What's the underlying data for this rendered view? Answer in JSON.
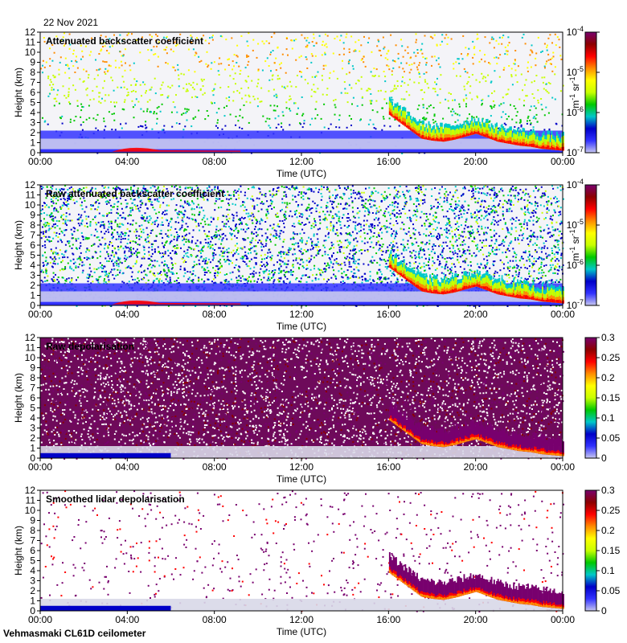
{
  "date": "22 Nov 2021",
  "footer": "Vehmasmaki CL61D ceilometer",
  "colors": {
    "rainbow": [
      "#f0f0f0",
      "#c8c8f0",
      "#3232ff",
      "#0000c8",
      "#00c8c8",
      "#00c800",
      "#c8ff00",
      "#ffff00",
      "#ff8c00",
      "#ff0000",
      "#8c0000",
      "#78006e"
    ],
    "background": "#e6e6e6",
    "nodata": "#ffffff"
  },
  "chart_data": [
    {
      "type": "heatmap",
      "title": "Attenuated backscatter coefficient",
      "xlabel": "Time (UTC)",
      "ylabel": "Height (km)",
      "xticks": [
        "00:00",
        "04:00",
        "08:00",
        "12:00",
        "16:00",
        "20:00",
        "00:00"
      ],
      "xlim": [
        0,
        24
      ],
      "yticks": [
        "0",
        "1",
        "2",
        "3",
        "4",
        "5",
        "6",
        "7",
        "8",
        "9",
        "10",
        "11",
        "12"
      ],
      "ylim": [
        0,
        12
      ],
      "colorbar": {
        "scale": "log",
        "range": [
          1e-07,
          0.0001
        ],
        "ticks": [
          {
            "base": "10",
            "exp": "-7"
          },
          {
            "base": "10",
            "exp": "-6"
          },
          {
            "base": "10",
            "exp": "-5"
          },
          {
            "base": "10",
            "exp": "-4"
          }
        ],
        "unit_parts": {
          "m": "m",
          "m_exp": "-1",
          "sr": "sr",
          "sr_exp": "-1"
        }
      },
      "features": {
        "boundary_layer_top_km": 2.2,
        "cloud_base_km": [
          [
            16.0,
            3.8
          ],
          [
            16.5,
            3.0
          ],
          [
            17.0,
            2.2
          ],
          [
            17.5,
            1.4
          ],
          [
            18.0,
            1.2
          ],
          [
            18.5,
            1.1
          ],
          [
            19.0,
            1.3
          ],
          [
            19.5,
            1.6
          ],
          [
            20.0,
            1.9
          ],
          [
            20.5,
            1.5
          ],
          [
            21.0,
            1.1
          ],
          [
            21.5,
            0.9
          ],
          [
            22.0,
            0.7
          ],
          [
            22.5,
            0.6
          ],
          [
            23.0,
            0.4
          ],
          [
            23.5,
            0.3
          ],
          [
            24.0,
            0.2
          ]
        ]
      }
    },
    {
      "type": "heatmap",
      "title": "Raw attenuated backscatter coefficient",
      "xlabel": "Time (UTC)",
      "ylabel": "Height (km)",
      "xticks": [
        "00:00",
        "04:00",
        "08:00",
        "12:00",
        "16:00",
        "20:00",
        "00:00"
      ],
      "xlim": [
        0,
        24
      ],
      "yticks": [
        "0",
        "1",
        "2",
        "3",
        "4",
        "5",
        "6",
        "7",
        "8",
        "9",
        "10",
        "11",
        "12"
      ],
      "ylim": [
        0,
        12
      ],
      "colorbar": {
        "scale": "log",
        "range": [
          1e-07,
          0.0001
        ],
        "ticks": [
          {
            "base": "10",
            "exp": "-7"
          },
          {
            "base": "10",
            "exp": "-6"
          },
          {
            "base": "10",
            "exp": "-5"
          },
          {
            "base": "10",
            "exp": "-4"
          }
        ],
        "unit_parts": {
          "m": "m",
          "m_exp": "-1",
          "sr": "sr",
          "sr_exp": "-1"
        }
      }
    },
    {
      "type": "heatmap",
      "title": "Raw depolarisation",
      "xlabel": "Time (UTC)",
      "ylabel": "Height (km)",
      "xticks": [
        "00:00",
        "04:00",
        "08:00",
        "12:00",
        "16:00",
        "20:00",
        "00:00"
      ],
      "xlim": [
        0,
        24
      ],
      "yticks": [
        "0",
        "1",
        "2",
        "3",
        "4",
        "5",
        "6",
        "7",
        "8",
        "9",
        "10",
        "11",
        "12"
      ],
      "ylim": [
        0,
        12
      ],
      "colorbar": {
        "scale": "linear",
        "range": [
          0,
          0.3
        ],
        "ticks": [
          "0",
          "0.05",
          "0.1",
          "0.15",
          "0.2",
          "0.25",
          "0.3"
        ]
      }
    },
    {
      "type": "heatmap",
      "title": "Smoothed lidar depolarisation",
      "xlabel": "Time (UTC)",
      "ylabel": "Height (km)",
      "xticks": [
        "00:00",
        "04:00",
        "08:00",
        "12:00",
        "16:00",
        "20:00",
        "00:00"
      ],
      "xlim": [
        0,
        24
      ],
      "yticks": [
        "0",
        "1",
        "2",
        "3",
        "4",
        "5",
        "6",
        "7",
        "8",
        "9",
        "10",
        "11",
        "12"
      ],
      "ylim": [
        0,
        12
      ],
      "colorbar": {
        "scale": "linear",
        "range": [
          0,
          0.3
        ],
        "ticks": [
          "0",
          "0.05",
          "0.1",
          "0.15",
          "0.2",
          "0.25",
          "0.3"
        ]
      }
    }
  ]
}
